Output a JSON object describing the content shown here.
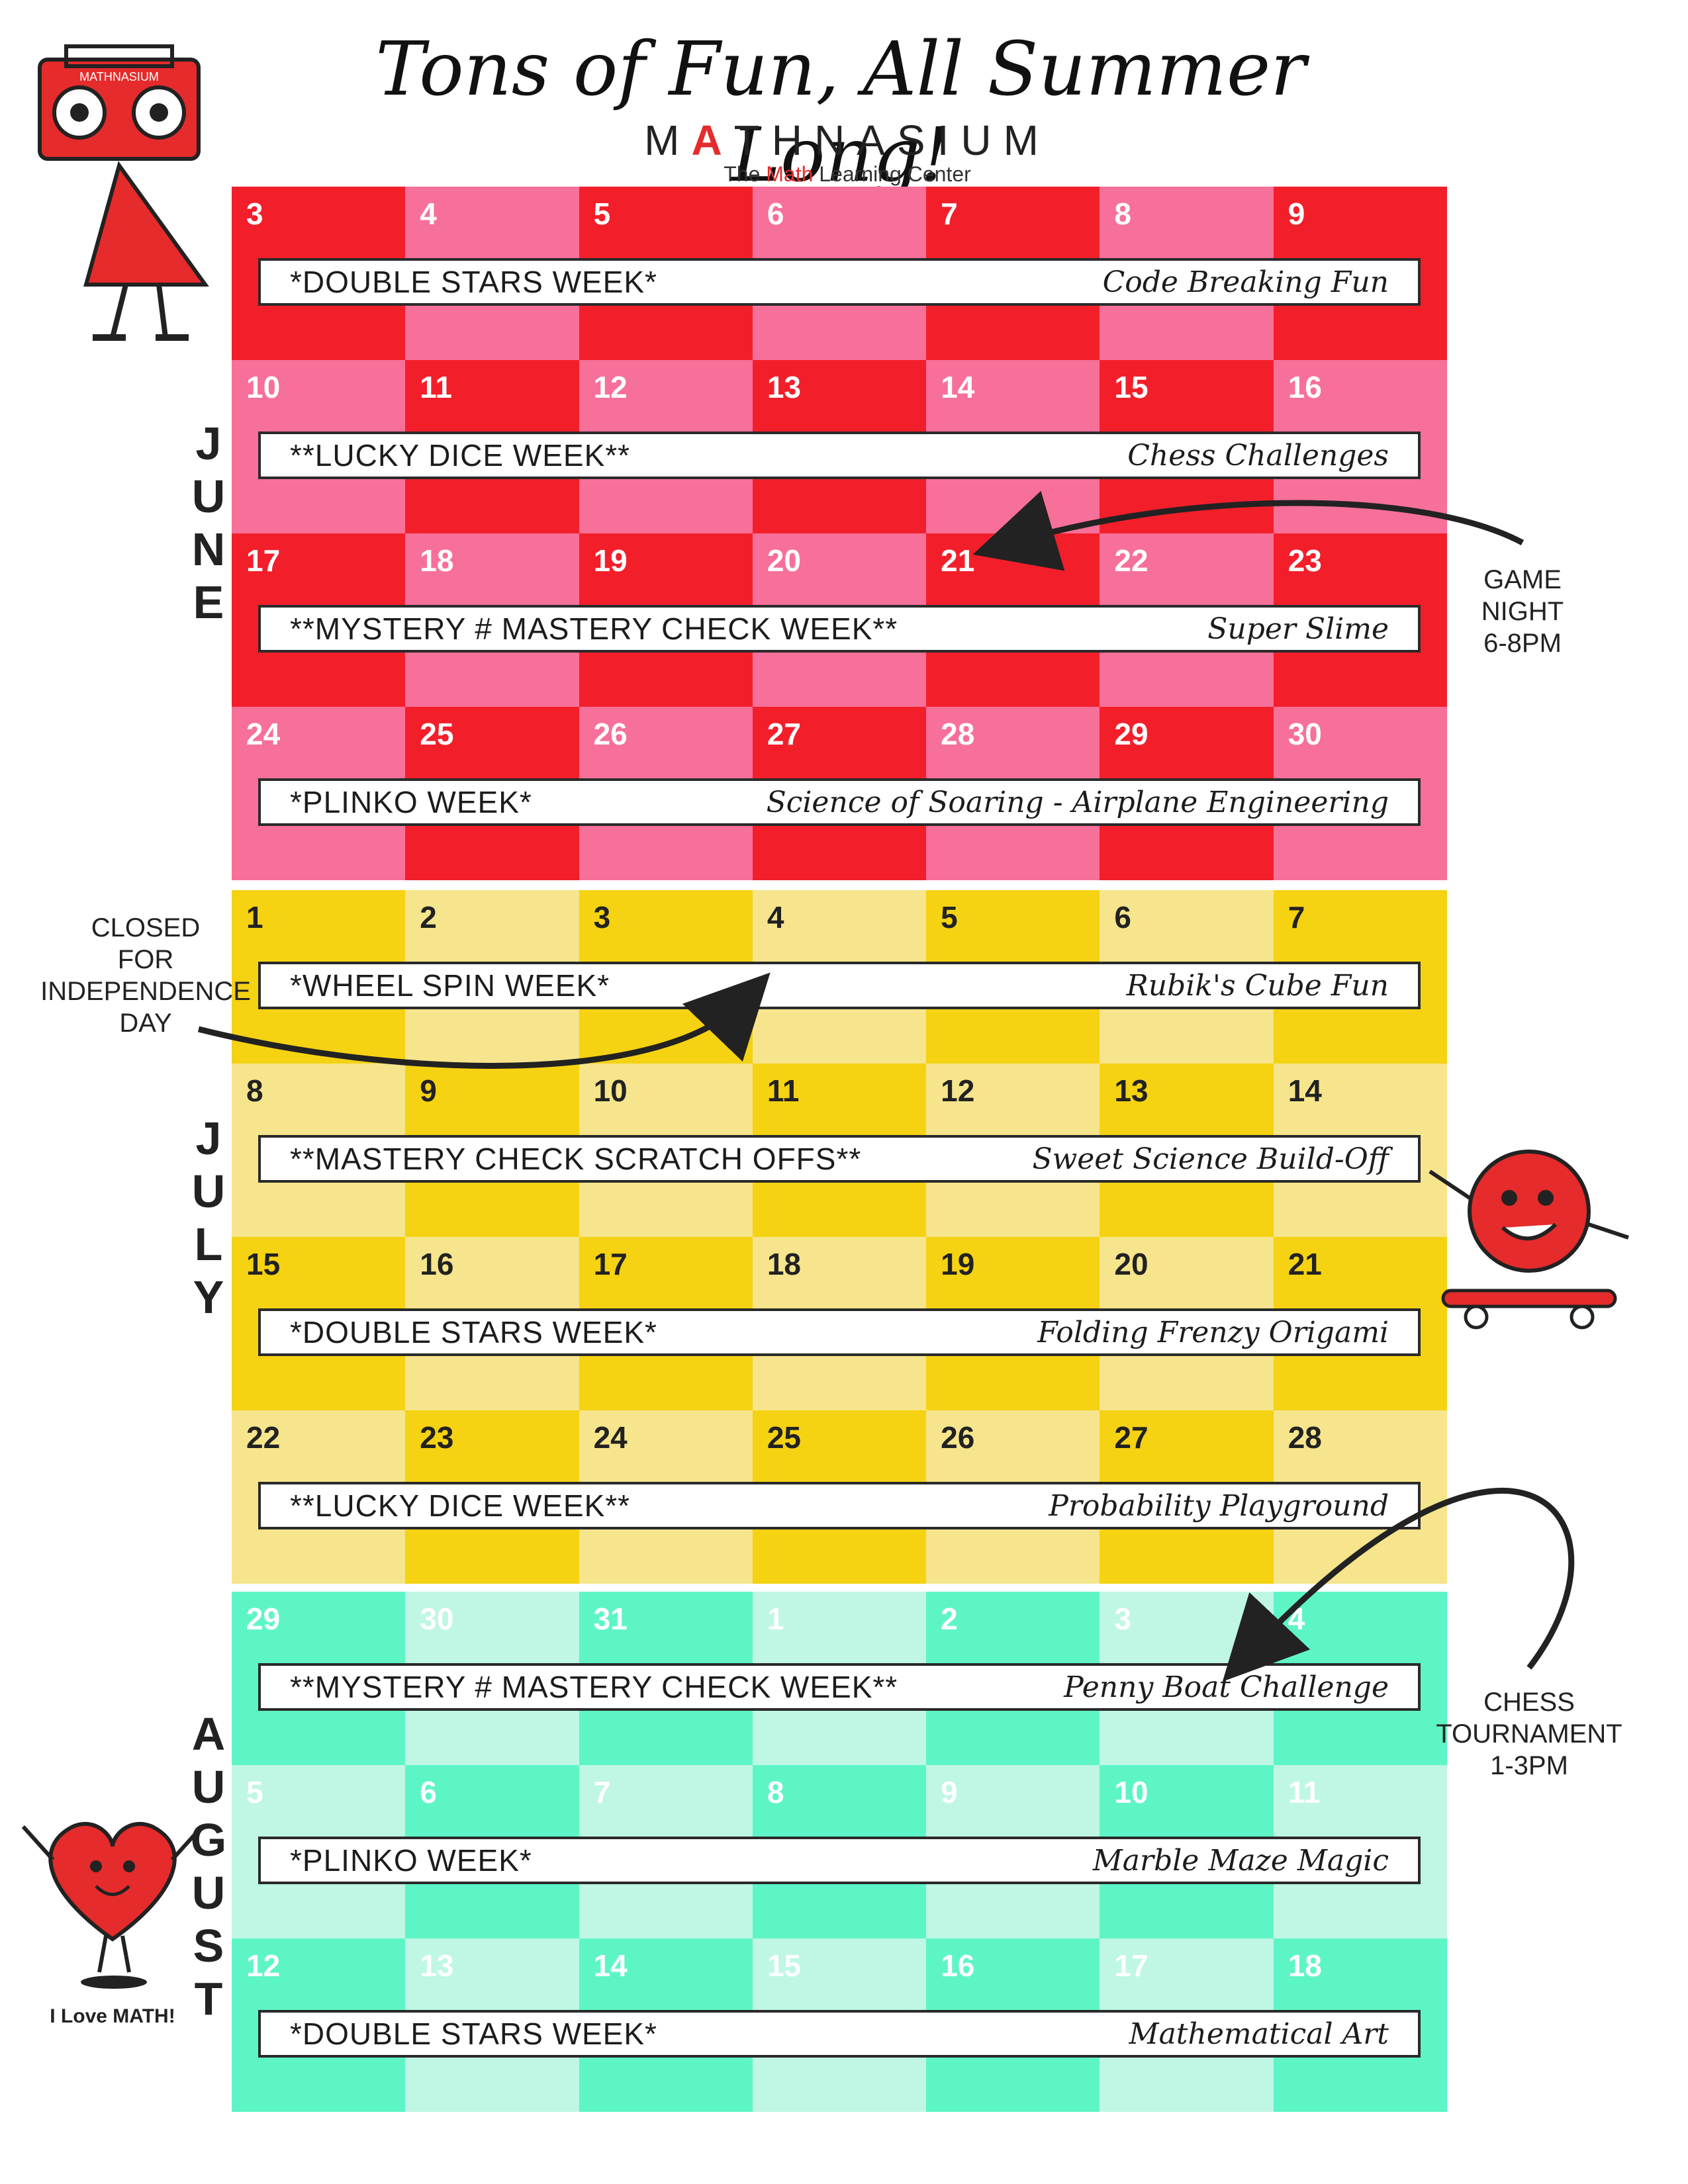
{
  "title": "Tons of Fun, All Summer Long!",
  "brand": {
    "name_pre": "M",
    "name_plus": "A",
    "name_post": "THNASIUM",
    "tagline_pre": "The ",
    "tagline_red": "Math",
    "tagline_post": " Learning Center"
  },
  "colors": {
    "june_dark": "#f21f2b",
    "june_light": "#f7709a",
    "july_dark": "#f5d212",
    "july_light": "#f6e58c",
    "aug_dark": "#5ef5c6",
    "aug_light": "#bff7e4"
  },
  "months": [
    {
      "key": "june",
      "letters": [
        "J",
        "U",
        "N",
        "E"
      ],
      "weeks": [
        {
          "days": [
            "3",
            "4",
            "5",
            "6",
            "7",
            "8",
            "9"
          ],
          "event": "*DOUBLE STARS WEEK*",
          "activity": "Code Breaking Fun"
        },
        {
          "days": [
            "10",
            "11",
            "12",
            "13",
            "14",
            "15",
            "16"
          ],
          "event": "**LUCKY DICE WEEK**",
          "activity": "Chess Challenges"
        },
        {
          "days": [
            "17",
            "18",
            "19",
            "20",
            "21",
            "22",
            "23"
          ],
          "event": "**MYSTERY # MASTERY CHECK WEEK**",
          "activity": "Super Slime"
        },
        {
          "days": [
            "24",
            "25",
            "26",
            "27",
            "28",
            "29",
            "30"
          ],
          "event": "*PLINKO WEEK*",
          "activity": "Science of Soaring - Airplane Engineering"
        }
      ]
    },
    {
      "key": "july",
      "letters": [
        "J",
        "U",
        "L",
        "Y"
      ],
      "weeks": [
        {
          "days": [
            "1",
            "2",
            "3",
            "4",
            "5",
            "6",
            "7"
          ],
          "event": "*WHEEL SPIN WEEK*",
          "activity": "Rubik's Cube Fun"
        },
        {
          "days": [
            "8",
            "9",
            "10",
            "11",
            "12",
            "13",
            "14"
          ],
          "event": "**MASTERY CHECK SCRATCH OFFS**",
          "activity": "Sweet Science Build-Off"
        },
        {
          "days": [
            "15",
            "16",
            "17",
            "18",
            "19",
            "20",
            "21"
          ],
          "event": "*DOUBLE STARS WEEK*",
          "activity": "Folding Frenzy Origami"
        },
        {
          "days": [
            "22",
            "23",
            "24",
            "25",
            "26",
            "27",
            "28"
          ],
          "event": "**LUCKY DICE WEEK**",
          "activity": "Probability Playground"
        }
      ]
    },
    {
      "key": "aug",
      "letters": [
        "A",
        "U",
        "G",
        "U",
        "S",
        "T"
      ],
      "weeks": [
        {
          "days": [
            "29",
            "30",
            "31",
            "1",
            "2",
            "3",
            "4"
          ],
          "event": "**MYSTERY # MASTERY CHECK WEEK**",
          "activity": "Penny Boat Challenge"
        },
        {
          "days": [
            "5",
            "6",
            "7",
            "8",
            "9",
            "10",
            "11"
          ],
          "event": "*PLINKO WEEK*",
          "activity": "Marble Maze Magic"
        },
        {
          "days": [
            "12",
            "13",
            "14",
            "15",
            "16",
            "17",
            "18"
          ],
          "event": "*DOUBLE STARS WEEK*",
          "activity": "Mathematical Art"
        }
      ]
    }
  ],
  "notes": {
    "game_night": [
      "GAME",
      "NIGHT",
      "6-8PM"
    ],
    "closed": [
      "CLOSED",
      "FOR",
      "INDEPENDENCE",
      "DAY"
    ],
    "chess": [
      "CHESS",
      "TOURNAMENT",
      "1-3PM"
    ]
  },
  "mascot_caption": "I Love MATH!",
  "radio_label": "MATHNASIUM"
}
